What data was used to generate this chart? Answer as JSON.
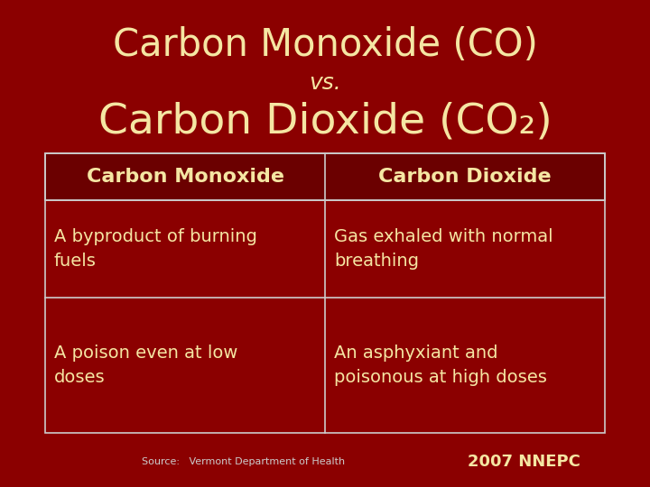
{
  "background_color": "#8B0000",
  "title_line1": "Carbon Monoxide (CO)",
  "title_vs": "vs.",
  "title_line2": "Carbon Dioxide (CO₂)",
  "title_color": "#F5E6A3",
  "title_fontsize": 30,
  "vs_fontsize": 18,
  "table_border_color": "#CCCCCC",
  "header_bg": "#6B0000",
  "header_text_color": "#F5E6A3",
  "header_fontsize": 16,
  "cell_text_color": "#F5E6A3",
  "cell_fontsize": 14,
  "col1_header": "Carbon Monoxide",
  "col2_header": "Carbon Dioxide",
  "row1_col1": "A byproduct of burning\nfuels",
  "row1_col2": "Gas exhaled with normal\nbreathing",
  "row2_col1": "A poison even at low\ndoses",
  "row2_col2": "An asphyxiant and\npoisonous at high doses",
  "source_text": "Source:   Vermont Department of Health",
  "source_fontsize": 8,
  "year_text": "2007 NNEPC",
  "year_fontsize": 13
}
